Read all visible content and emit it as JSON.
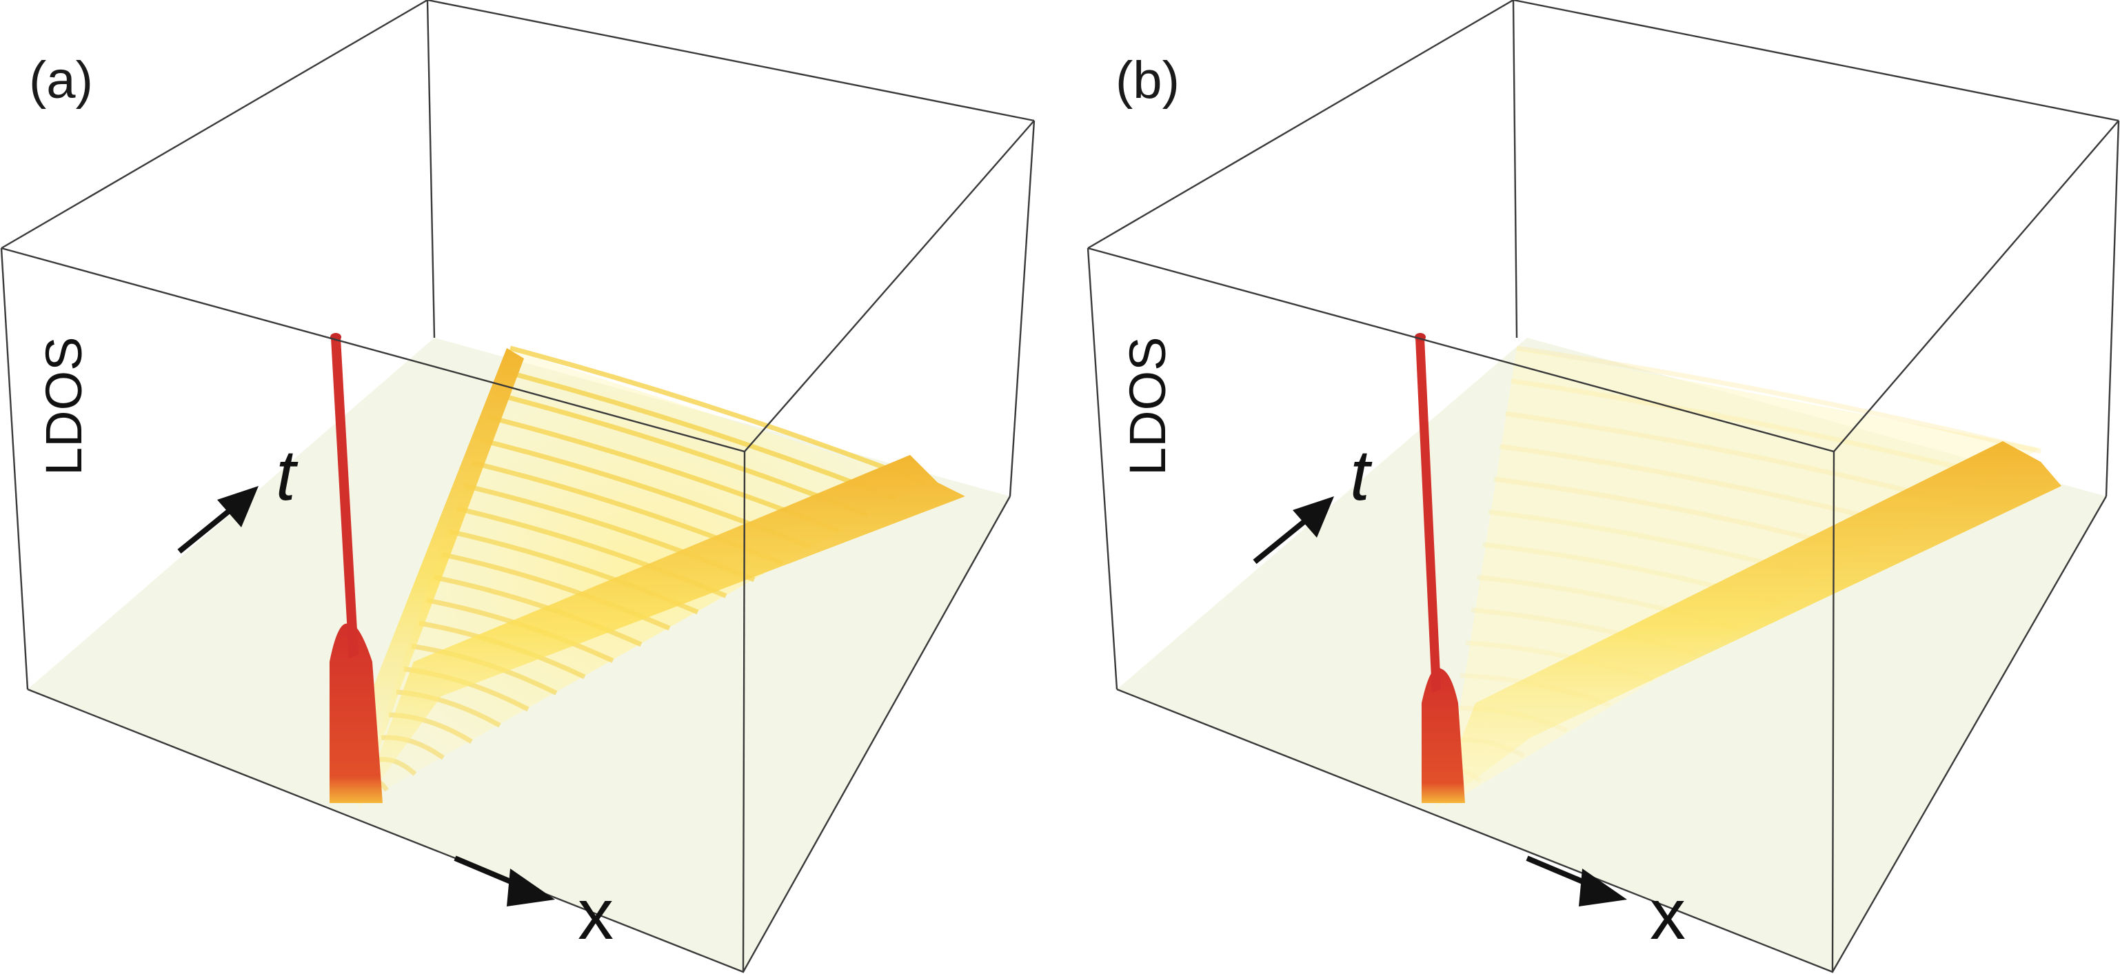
{
  "chart_data": [
    {
      "type": "surface3d",
      "panel": "(a)",
      "axes": {
        "x": "x",
        "t": "t",
        "z": "LDOS"
      },
      "colors": {
        "floor": "#f3f6e6",
        "low": "#fff59a",
        "mid": "#f6c83c",
        "high": "#d73027"
      },
      "features": {
        "localized_peak": "red spike at x=0 persisting for all t",
        "light_cone": "two bright wavefronts spreading from x=0 with filled interior ripples"
      }
    },
    {
      "type": "surface3d",
      "panel": "(b)",
      "axes": {
        "x": "x",
        "t": "t",
        "z": "LDOS"
      },
      "colors": {
        "floor": "#f3f6e6",
        "low": "#fff59a",
        "mid": "#f6c83c",
        "high": "#d73027"
      },
      "features": {
        "localized_peak": "red spike at x=0 persisting for all t",
        "light_cone": "single wavefront moving toward +x, interior nearly empty"
      }
    }
  ]
}
